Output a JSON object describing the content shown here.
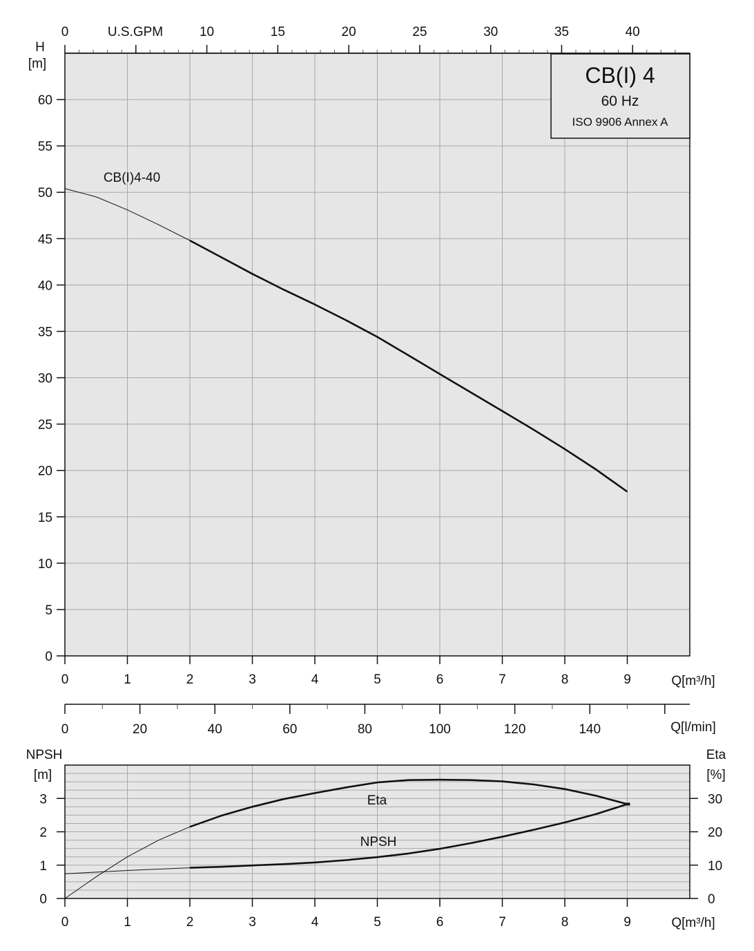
{
  "colors": {
    "plot_background": "#e6e6e6",
    "grid": "#a8a8a8",
    "curve": "#111111",
    "text": "#111111"
  },
  "info_box": {
    "title": "CB(I) 4",
    "frequency": "60 Hz",
    "standard": "ISO 9906 Annex A"
  },
  "chart_data": [
    {
      "type": "line",
      "panel": "head",
      "grid": true,
      "xlim": [
        0,
        10
      ],
      "ylim": [
        0,
        65
      ],
      "x_ticks": [
        0,
        1,
        2,
        3,
        4,
        5,
        6,
        7,
        8,
        9
      ],
      "y_ticks": [
        0,
        5,
        10,
        15,
        20,
        25,
        30,
        35,
        40,
        45,
        50,
        55,
        60
      ],
      "xlabel": "Q[m³/h]",
      "ylabel_top": "H",
      "ylabel_unit": "[m]",
      "gpm_axis": {
        "label": "U.S.GPM",
        "ticks": [
          0,
          10,
          15,
          20,
          25,
          30,
          35,
          40
        ]
      },
      "lmin_axis": {
        "label": "Q[l/min]",
        "ticks": [
          0,
          20,
          40,
          60,
          80,
          100,
          120,
          140
        ]
      },
      "series": [
        {
          "name": "CB(I)4-40",
          "x": [
            0,
            0.5,
            1,
            1.5,
            2,
            2.5,
            3,
            3.5,
            4,
            4.5,
            5,
            5.5,
            6,
            6.5,
            7,
            7.5,
            8,
            8.5,
            9
          ],
          "y": [
            50.4,
            49.5,
            48.1,
            46.5,
            44.8,
            43.0,
            41.2,
            39.5,
            37.9,
            36.2,
            34.4,
            32.4,
            30.4,
            28.4,
            26.4,
            24.4,
            22.3,
            20.1,
            17.7
          ],
          "bold_from_x": 2
        }
      ]
    },
    {
      "type": "line",
      "panel": "npsh_eta",
      "grid": true,
      "xlim": [
        0,
        10
      ],
      "ylim_left": [
        0,
        4
      ],
      "ylim_right": [
        0,
        40
      ],
      "x_ticks": [
        0,
        1,
        2,
        3,
        4,
        5,
        6,
        7,
        8,
        9
      ],
      "y_ticks_left": [
        0,
        1,
        2,
        3
      ],
      "y_ticks_right": [
        0,
        10,
        20,
        30
      ],
      "xlabel": "Q[m³/h]",
      "ylabel_left_top": "NPSH",
      "ylabel_left_unit": "[m]",
      "ylabel_right_top": "Eta",
      "ylabel_right_unit": "[%]",
      "series": [
        {
          "name": "Eta",
          "axis": "right",
          "x": [
            0,
            0.5,
            1,
            1.5,
            2,
            2.5,
            3,
            3.5,
            4,
            4.5,
            5,
            5.5,
            6,
            6.5,
            7,
            7.5,
            8,
            8.5,
            9
          ],
          "y": [
            0,
            6.5,
            12.5,
            17.5,
            21.5,
            24.8,
            27.5,
            29.8,
            31.6,
            33.3,
            34.8,
            35.5,
            35.6,
            35.5,
            35.1,
            34.2,
            32.8,
            30.8,
            28.3
          ],
          "bold_from_x": 2
        },
        {
          "name": "NPSH",
          "axis": "left",
          "x": [
            0,
            0.5,
            1,
            1.5,
            2,
            2.5,
            3,
            3.5,
            4,
            4.5,
            5,
            5.5,
            6,
            6.5,
            7,
            7.5,
            8,
            8.5,
            9
          ],
          "y": [
            0.74,
            0.79,
            0.84,
            0.88,
            0.92,
            0.95,
            0.99,
            1.03,
            1.08,
            1.15,
            1.24,
            1.35,
            1.49,
            1.66,
            1.85,
            2.06,
            2.28,
            2.53,
            2.83
          ],
          "bold_from_x": 2
        }
      ]
    }
  ]
}
